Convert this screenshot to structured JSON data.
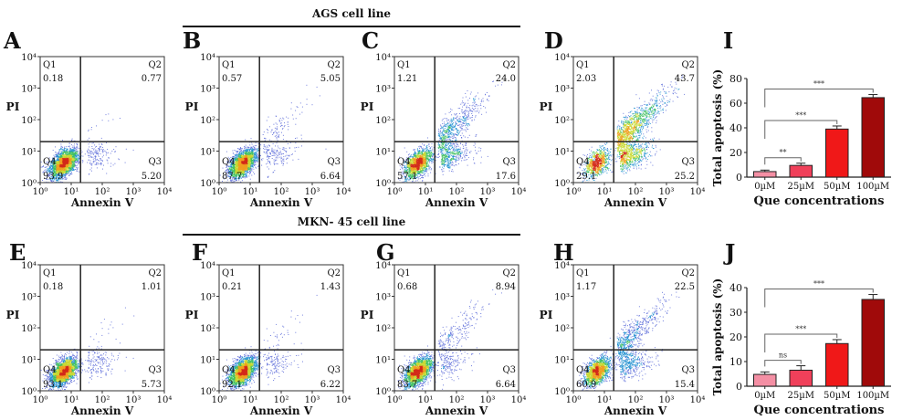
{
  "groups": [
    {
      "title": "AGS cell line"
    },
    {
      "title": "MKN- 45 cell line"
    }
  ],
  "flow_axes": {
    "xlabel": "Annexin V",
    "ylabel": "PI",
    "ticks": [
      "10⁰",
      "10¹",
      "10²",
      "10³",
      "10⁴"
    ]
  },
  "chart_data": [
    {
      "type": "scatter",
      "panel": "A",
      "group": "AGS cell line",
      "title": "",
      "xlabel": "Annexin V",
      "ylabel": "PI",
      "xscale": "log",
      "yscale": "log",
      "xlim": [
        1,
        10000
      ],
      "ylim": [
        1,
        10000
      ],
      "quadrants": {
        "Q1": "0.18",
        "Q2": "0.77",
        "Q3": "5.20",
        "Q4": "93.9"
      }
    },
    {
      "type": "scatter",
      "panel": "B",
      "group": "AGS cell line",
      "title": "",
      "xlabel": "Annexin V",
      "ylabel": "PI",
      "xscale": "log",
      "yscale": "log",
      "xlim": [
        1,
        10000
      ],
      "ylim": [
        1,
        10000
      ],
      "quadrants": {
        "Q1": "0.57",
        "Q2": "5.05",
        "Q3": "6.64",
        "Q4": "87.7"
      }
    },
    {
      "type": "scatter",
      "panel": "C",
      "group": "AGS cell line",
      "title": "",
      "xlabel": "Annexin V",
      "ylabel": "PI",
      "xscale": "log",
      "yscale": "log",
      "xlim": [
        1,
        10000
      ],
      "ylim": [
        1,
        10000
      ],
      "quadrants": {
        "Q1": "1.21",
        "Q2": "24.0",
        "Q3": "17.6",
        "Q4": "57.1"
      }
    },
    {
      "type": "scatter",
      "panel": "D",
      "group": "AGS cell line",
      "title": "",
      "xlabel": "Annexin V",
      "ylabel": "PI",
      "xscale": "log",
      "yscale": "log",
      "xlim": [
        1,
        10000
      ],
      "ylim": [
        1,
        10000
      ],
      "quadrants": {
        "Q1": "2.03",
        "Q2": "43.7",
        "Q3": "25.2",
        "Q4": "29.1"
      }
    },
    {
      "type": "scatter",
      "panel": "E",
      "group": "MKN- 45 cell line",
      "title": "",
      "xlabel": "Annexin V",
      "ylabel": "PI",
      "xscale": "log",
      "yscale": "log",
      "xlim": [
        1,
        10000
      ],
      "ylim": [
        1,
        10000
      ],
      "quadrants": {
        "Q1": "0.18",
        "Q2": "1.01",
        "Q3": "5.73",
        "Q4": "93.1"
      }
    },
    {
      "type": "scatter",
      "panel": "F",
      "group": "MKN- 45 cell line",
      "title": "",
      "xlabel": "Annexin V",
      "ylabel": "PI",
      "xscale": "log",
      "yscale": "log",
      "xlim": [
        1,
        10000
      ],
      "ylim": [
        1,
        10000
      ],
      "quadrants": {
        "Q1": "0.21",
        "Q2": "1.43",
        "Q3": "6.22",
        "Q4": "92.1"
      }
    },
    {
      "type": "scatter",
      "panel": "G",
      "group": "MKN- 45 cell line",
      "title": "",
      "xlabel": "Annexin V",
      "ylabel": "PI",
      "xscale": "log",
      "yscale": "log",
      "xlim": [
        1,
        10000
      ],
      "ylim": [
        1,
        10000
      ],
      "quadrants": {
        "Q1": "0.68",
        "Q2": "8.94",
        "Q3": "6.64",
        "Q4": "83.7"
      }
    },
    {
      "type": "scatter",
      "panel": "H",
      "group": "MKN- 45 cell line",
      "title": "",
      "xlabel": "Annexin V",
      "ylabel": "PI",
      "xscale": "log",
      "yscale": "log",
      "xlim": [
        1,
        10000
      ],
      "ylim": [
        1,
        10000
      ],
      "quadrants": {
        "Q1": "1.17",
        "Q2": "22.5",
        "Q3": "15.4",
        "Q4": "60.9"
      }
    },
    {
      "type": "bar",
      "panel": "I",
      "title": "",
      "xlabel": "Que concentrations",
      "ylabel": "Total apoptosis (%)",
      "categories": [
        "0µM",
        "25µM",
        "50µM",
        "100µM"
      ],
      "values": [
        4.5,
        9.5,
        39,
        64.5
      ],
      "errors": [
        1.2,
        1.8,
        2.5,
        2.5
      ],
      "colors": [
        "#f48fa4",
        "#f0405a",
        "#f01818",
        "#a00a0a"
      ],
      "ylim": [
        0,
        80
      ],
      "yticks": [
        0,
        20,
        40,
        60,
        80
      ],
      "significance": [
        {
          "from": 0,
          "to": 1,
          "label": "**"
        },
        {
          "from": 0,
          "to": 2,
          "label": "***"
        },
        {
          "from": 0,
          "to": 3,
          "label": "***"
        }
      ]
    },
    {
      "type": "bar",
      "panel": "J",
      "title": "",
      "xlabel": "Que concentrations",
      "ylabel": "Total apoptosis (%)",
      "categories": [
        "0µM",
        "25µM",
        "50µM",
        "100µM"
      ],
      "values": [
        4.8,
        6.5,
        17.3,
        35.2
      ],
      "errors": [
        1.0,
        1.8,
        1.6,
        2.0
      ],
      "colors": [
        "#f48fa4",
        "#f0405a",
        "#f01818",
        "#a00a0a"
      ],
      "ylim": [
        0,
        40
      ],
      "yticks": [
        0,
        10,
        20,
        30,
        40
      ],
      "significance": [
        {
          "from": 0,
          "to": 1,
          "label": "ns"
        },
        {
          "from": 0,
          "to": 2,
          "label": "***"
        },
        {
          "from": 0,
          "to": 3,
          "label": "***"
        }
      ]
    }
  ]
}
